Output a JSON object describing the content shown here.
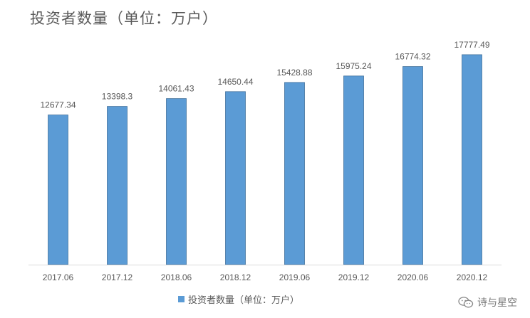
{
  "chart_data": {
    "type": "bar",
    "title": "投资者数量（单位：万户）",
    "categories": [
      "2017.06",
      "2017.12",
      "2018.06",
      "2018.12",
      "2019.06",
      "2019.12",
      "2020.06",
      "2020.12"
    ],
    "series": [
      {
        "name": "投资者数量（单位：万户）",
        "values": [
          12677.34,
          13398.3,
          14061.43,
          14650.44,
          15428.88,
          15975.24,
          16774.32,
          17777.49
        ],
        "labels": [
          "12677.34",
          "13398.3",
          "14061.43",
          "14650.44",
          "15428.88",
          "15975.24",
          "16774.32",
          "17777.49"
        ]
      }
    ],
    "ylim": [
      0,
      20000
    ],
    "show_y_axis": false,
    "grid": false,
    "legend": "bottom",
    "colors": {
      "bar": "#5b9bd5",
      "bar_edge": "#41719c",
      "text": "#595959",
      "axis": "#d9d9d9"
    }
  },
  "watermark": {
    "text": "诗与星空",
    "icon": "wechat-icon"
  }
}
